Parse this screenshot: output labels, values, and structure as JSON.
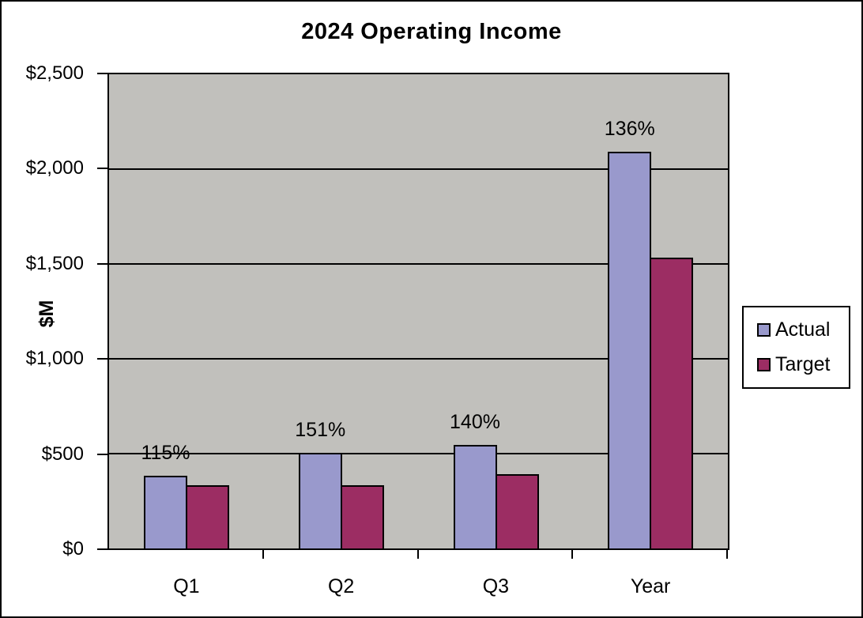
{
  "chart_data": {
    "type": "bar",
    "title": "2024 Operating Income",
    "ylabel": "$M",
    "xlabel": "",
    "categories": [
      "Q1",
      "Q2",
      "Q3",
      "Year"
    ],
    "series": [
      {
        "name": "Actual",
        "color": "#9999CC",
        "values": [
          385,
          505,
          545,
          2090
        ]
      },
      {
        "name": "Target",
        "color": "#9C2D63",
        "values": [
          335,
          335,
          390,
          1535
        ]
      }
    ],
    "bar_labels": [
      "115%",
      "151%",
      "140%",
      "136%"
    ],
    "bar_label_series": "Actual",
    "ylim": [
      0,
      2500
    ],
    "ytick_values": [
      0,
      500,
      1000,
      1500,
      2000,
      2500
    ],
    "ytick_labels": [
      "$0",
      "$500",
      "$1,000",
      "$1,500",
      "$2,000",
      "$2,500"
    ],
    "grid": true,
    "gridline_color": "#000000",
    "plot_background": "#C1C0BC",
    "legend_position": "right",
    "legend_entries": [
      "Actual",
      "Target"
    ]
  }
}
